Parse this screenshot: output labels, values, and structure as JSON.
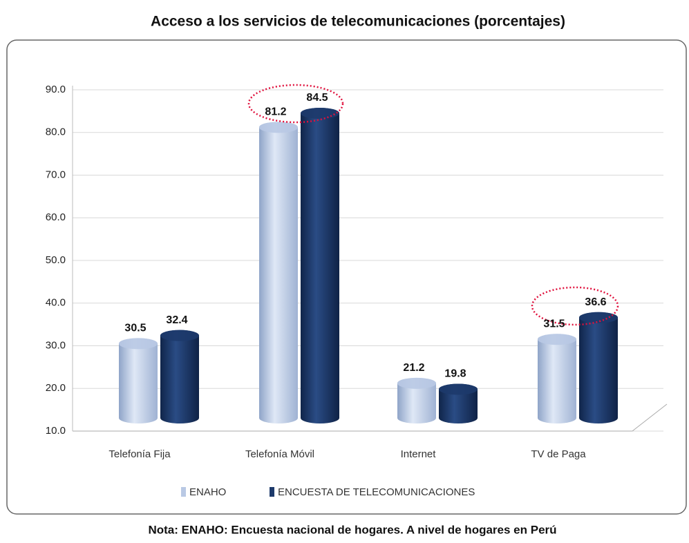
{
  "chart_data": {
    "type": "bar",
    "title": "Acceso a los servicios de telecomunicaciones (porcentajes)",
    "note": "Nota: ENAHO: Encuesta nacional de hogares. A nivel de hogares en Perú",
    "categories": [
      "Telefonía Fija",
      "Telefonía Móvil",
      "Internet",
      "TV de Paga"
    ],
    "series": [
      {
        "name": "ENAHO",
        "color": "#b9c9e4",
        "values": [
          30.5,
          81.2,
          21.2,
          31.5
        ]
      },
      {
        "name": "ENCUESTA DE TELECOMUNICACIONES",
        "color": "#1d3a6b",
        "values": [
          32.4,
          84.5,
          19.8,
          36.6
        ]
      }
    ],
    "ylim": [
      10,
      90
    ],
    "yticks": [
      {
        "value": 10,
        "label": "10.0"
      },
      {
        "value": 20,
        "label": "20.0"
      },
      {
        "value": 30,
        "label": "30.0"
      },
      {
        "value": 40,
        "label": "40.0"
      },
      {
        "value": 50,
        "label": "50.0"
      },
      {
        "value": 60,
        "label": "60.0"
      },
      {
        "value": 70,
        "label": "70.0"
      },
      {
        "value": 80,
        "label": "80.0"
      },
      {
        "value": 90,
        "label": "90.0"
      }
    ],
    "grid": true
  }
}
